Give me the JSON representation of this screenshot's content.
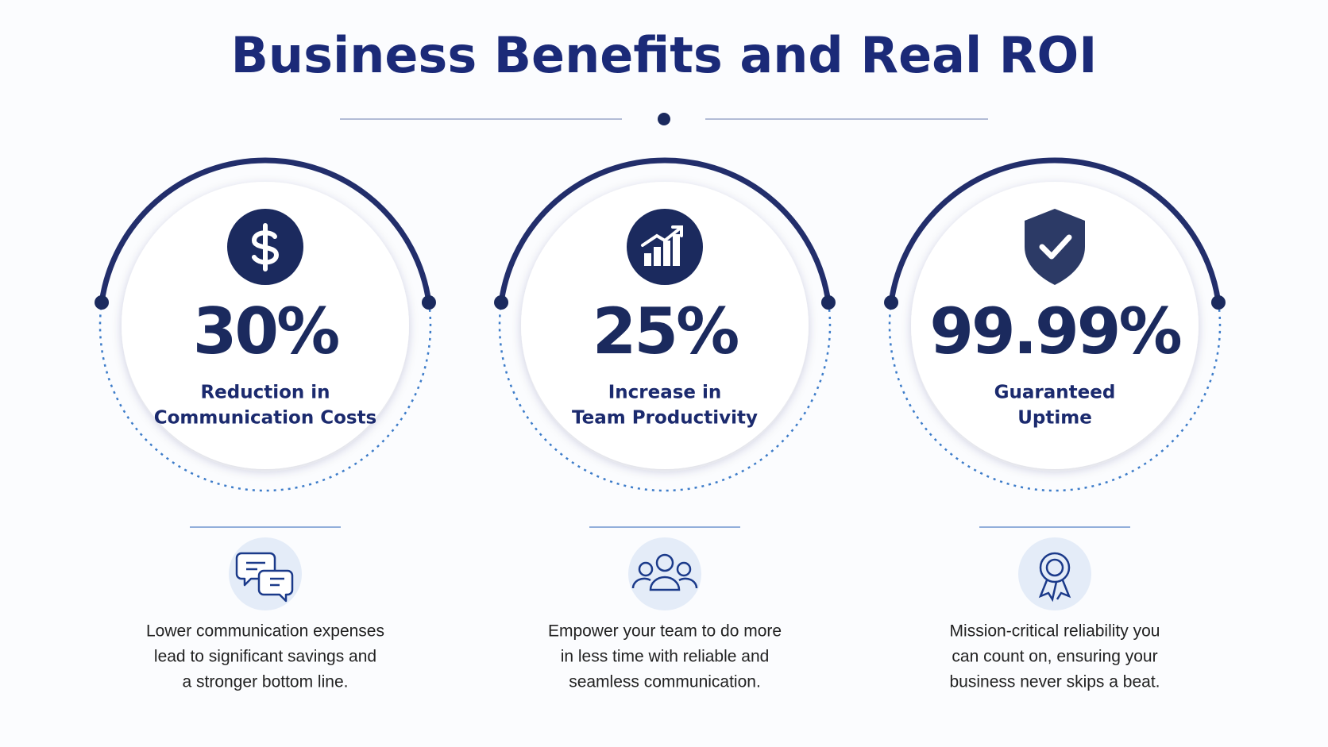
{
  "title": "Business Benefits and Real ROI",
  "cards": [
    {
      "stat": "30%",
      "label": [
        "Reduction in",
        "Communication Costs"
      ],
      "description": [
        "Lower communication expenses",
        "lead to significant savings and",
        "a stronger bottom line."
      ]
    },
    {
      "stat": "25%",
      "label": [
        "Increase in",
        "Team Productivity"
      ],
      "description": [
        "Empower your team to do more",
        "in less time with reliable and",
        "seamless communication."
      ]
    },
    {
      "stat": "99.99%",
      "label": [
        "Guaranteed",
        "Uptime"
      ],
      "description": [
        "Mission-critical reliability you",
        "can count on, ensuring your",
        "business never skips a beat."
      ]
    }
  ]
}
